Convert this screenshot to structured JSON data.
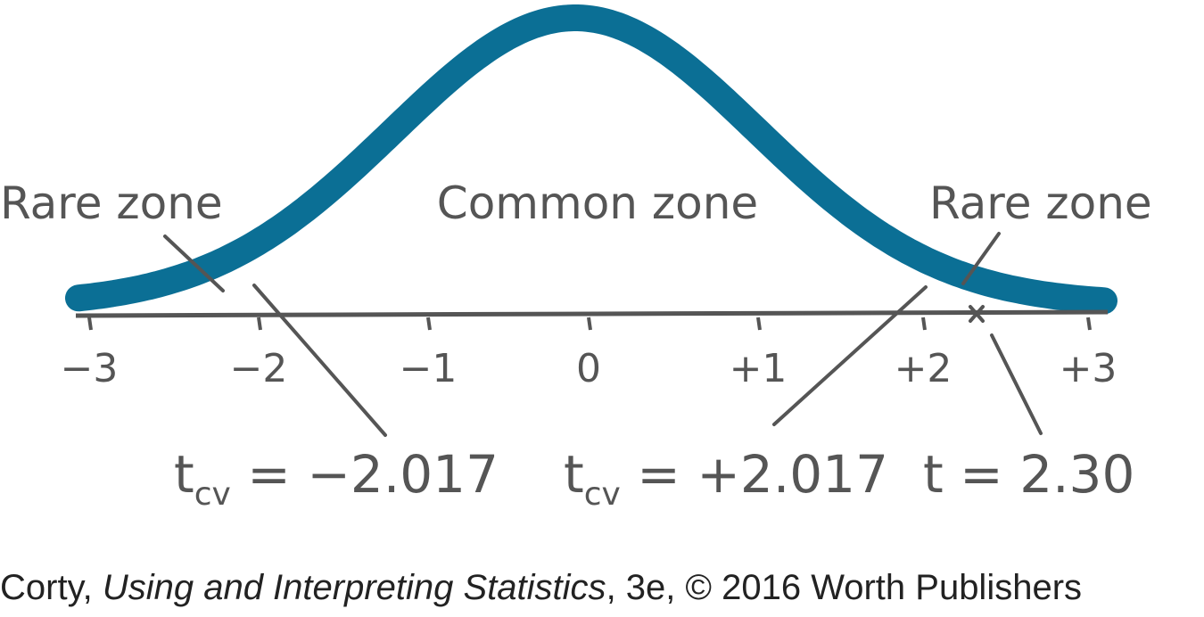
{
  "zones": [
    "Rare zone",
    "Common zone",
    "Rare zone"
  ],
  "axis_labels": [
    "−3",
    "−2",
    "−1",
    "0",
    "+1",
    "+2",
    "+3"
  ],
  "annotations": [
    {
      "symbol": "t",
      "subscript": "cv",
      "text": " = −2.017"
    },
    {
      "symbol": "t",
      "subscript": "cv",
      "text": " = +2.017"
    },
    {
      "symbol": "t",
      "text": " = 2.30"
    }
  ],
  "caption": {
    "before": "Corty, ",
    "italic": "Using and Interpreting Statistics",
    "after": ", 3e, © 2016 Worth Publishers"
  }
}
